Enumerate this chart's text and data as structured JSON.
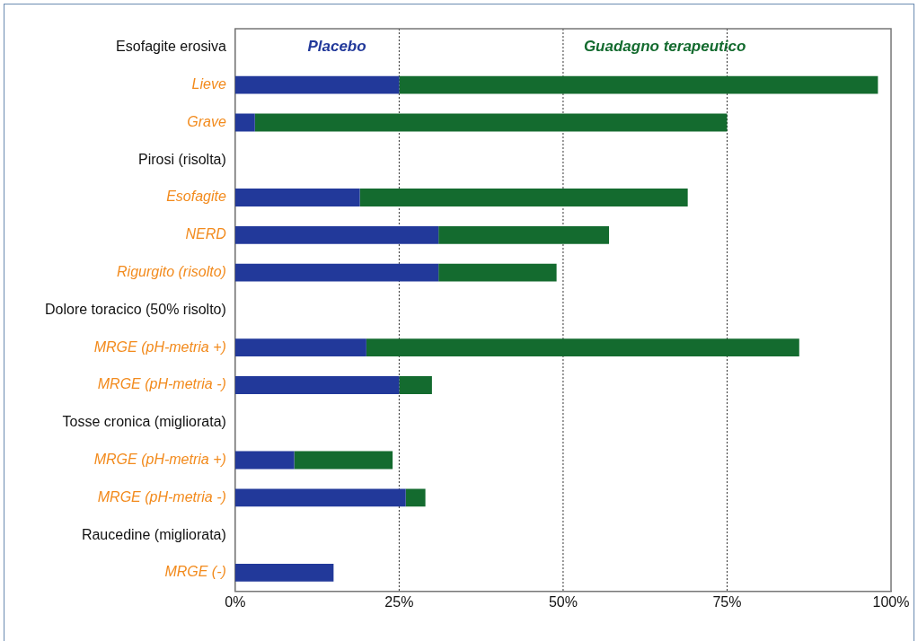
{
  "chart_data": {
    "type": "bar",
    "orientation": "horizontal",
    "stacked": true,
    "categories": [
      "Esofagite erosiva",
      "Lieve",
      "Grave",
      "Pirosi (risolta)",
      "Esofagite",
      "NERD",
      "Rigurgito (risolto)",
      "Dolore toracico (50% risolto)",
      "MRGE (pH-metria +)",
      "MRGE (pH-metria -)",
      "Tosse cronica (migliorata)",
      "MRGE (pH-metria +)",
      "MRGE (pH-metria -)",
      "Raucedine (migliorata)",
      "MRGE (-)"
    ],
    "series": [
      {
        "name": "Placebo",
        "color": "#22399a",
        "values": [
          null,
          25,
          3,
          null,
          19,
          31,
          31,
          null,
          20,
          25,
          null,
          9,
          26,
          null,
          15
        ]
      },
      {
        "name": "Guadagno terapeutico",
        "color": "#146b2f",
        "values": [
          null,
          73,
          72,
          null,
          50,
          26,
          18,
          null,
          66,
          5,
          null,
          15,
          3,
          null,
          null
        ]
      }
    ],
    "xlim": [
      0,
      100
    ],
    "xticks": [
      {
        "value": 0,
        "label": "0%"
      },
      {
        "value": 25,
        "label": "25%"
      },
      {
        "value": 50,
        "label": "50%"
      },
      {
        "value": 75,
        "label": "75%"
      },
      {
        "value": 100,
        "label": "100%"
      }
    ],
    "grid": "x",
    "line_style": "dotted",
    "legend": "top"
  }
}
